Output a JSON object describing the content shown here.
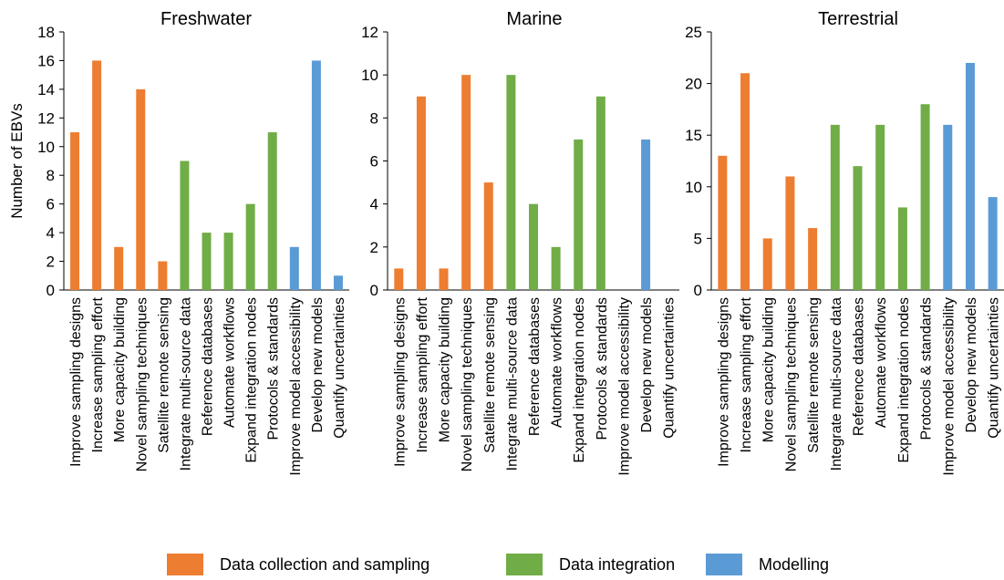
{
  "colors": {
    "data_collection": "#ED7D31",
    "data_integration": "#70AD47",
    "modelling": "#5B9BD5",
    "axis": "#000000"
  },
  "legend": [
    {
      "label": "Data collection and sampling",
      "color": "#ED7D31"
    },
    {
      "label": "Data integration",
      "color": "#70AD47"
    },
    {
      "label": "Modelling",
      "color": "#5B9BD5"
    }
  ],
  "chart_data": [
    {
      "type": "bar",
      "title": "Freshwater",
      "ylabel": "Number of EBVs",
      "ylim": [
        0,
        18
      ],
      "yticks": [
        0,
        2,
        4,
        6,
        8,
        10,
        12,
        14,
        16,
        18
      ],
      "categories": [
        "Improve sampling designs",
        "Increase sampling effort",
        "More capacity building",
        "Novel sampling techniques",
        "Satellite remote sensing",
        "Integrate multi-source data",
        "Reference databases",
        "Automate workflows",
        "Expand integration nodes",
        "Protocols & standards",
        "Improve model accessibility",
        "Develop new models",
        "Quantify uncertainties"
      ],
      "groups": [
        "Data collection and sampling",
        "Data collection and sampling",
        "Data collection and sampling",
        "Data collection and sampling",
        "Data collection and sampling",
        "Data integration",
        "Data integration",
        "Data integration",
        "Data integration",
        "Data integration",
        "Modelling",
        "Modelling",
        "Modelling"
      ],
      "values": [
        11,
        16,
        3,
        14,
        2,
        9,
        4,
        4,
        6,
        11,
        3,
        16,
        1
      ]
    },
    {
      "type": "bar",
      "title": "Marine",
      "ylabel": "",
      "ylim": [
        0,
        12
      ],
      "yticks": [
        0,
        2,
        4,
        6,
        8,
        10,
        12
      ],
      "categories": [
        "Improve sampling designs",
        "Increase sampling effort",
        "More capacity building",
        "Novel sampling techniques",
        "Satellite remote sensing",
        "Integrate multi-source data",
        "Reference databases",
        "Automate workflows",
        "Expand integration nodes",
        "Protocols & standards",
        "Improve model accessibility",
        "Develop new models",
        "Quantify uncertainties"
      ],
      "groups": [
        "Data collection and sampling",
        "Data collection and sampling",
        "Data collection and sampling",
        "Data collection and sampling",
        "Data collection and sampling",
        "Data integration",
        "Data integration",
        "Data integration",
        "Data integration",
        "Data integration",
        "Modelling",
        "Modelling",
        "Modelling"
      ],
      "values": [
        1,
        9,
        1,
        10,
        5,
        10,
        4,
        2,
        7,
        9,
        0,
        7,
        0
      ]
    },
    {
      "type": "bar",
      "title": "Terrestrial",
      "ylabel": "",
      "ylim": [
        0,
        25
      ],
      "yticks": [
        0,
        5,
        10,
        15,
        20,
        25
      ],
      "categories": [
        "Improve sampling designs",
        "Increase sampling effort",
        "More capacity building",
        "Novel sampling techniques",
        "Satellite remote sensing",
        "Integrate multi-source data",
        "Reference databases",
        "Automate workflows",
        "Expand integration nodes",
        "Protocols & standards",
        "Improve model accessibility",
        "Develop new models",
        "Quantify uncertainties"
      ],
      "groups": [
        "Data collection and sampling",
        "Data collection and sampling",
        "Data collection and sampling",
        "Data collection and sampling",
        "Data collection and sampling",
        "Data integration",
        "Data integration",
        "Data integration",
        "Data integration",
        "Data integration",
        "Modelling",
        "Modelling",
        "Modelling"
      ],
      "values": [
        13,
        21,
        5,
        11,
        6,
        16,
        12,
        16,
        8,
        18,
        16,
        22,
        9
      ]
    }
  ]
}
